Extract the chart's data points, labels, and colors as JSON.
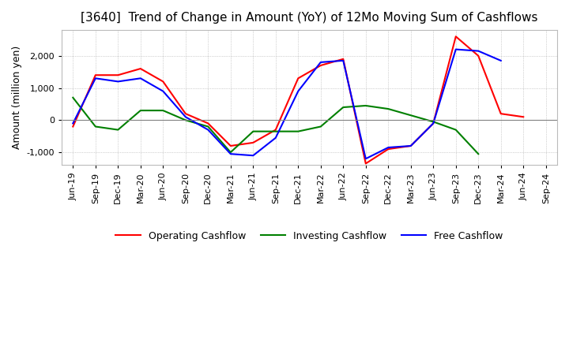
{
  "title": "[3640]  Trend of Change in Amount (YoY) of 12Mo Moving Sum of Cashflows",
  "ylabel": "Amount (million yen)",
  "x_labels": [
    "Jun-19",
    "Sep-19",
    "Dec-19",
    "Mar-20",
    "Jun-20",
    "Sep-20",
    "Dec-20",
    "Mar-21",
    "Jun-21",
    "Sep-21",
    "Dec-21",
    "Mar-22",
    "Jun-22",
    "Sep-22",
    "Dec-22",
    "Mar-23",
    "Jun-23",
    "Sep-23",
    "Dec-23",
    "Mar-24",
    "Jun-24",
    "Sep-24"
  ],
  "operating": [
    -200,
    1400,
    1400,
    1600,
    1200,
    200,
    -100,
    -800,
    -700,
    -300,
    1300,
    1700,
    1900,
    -1350,
    -900,
    -800,
    -100,
    2600,
    2000,
    200,
    100,
    null
  ],
  "investing": [
    700,
    -200,
    -300,
    300,
    300,
    0,
    -200,
    -1000,
    -350,
    -350,
    -350,
    -200,
    400,
    450,
    350,
    150,
    -50,
    -300,
    -1050,
    null,
    null,
    null
  ],
  "free": [
    -100,
    1300,
    1200,
    1300,
    900,
    100,
    -300,
    -1050,
    -1100,
    -550,
    900,
    1800,
    1850,
    -1200,
    -850,
    -800,
    -100,
    2200,
    2150,
    1850,
    null,
    null
  ],
  "ylim": [
    -1400,
    2800
  ],
  "yticks": [
    -1000,
    0,
    1000,
    2000
  ],
  "operating_color": "#ff0000",
  "investing_color": "#008000",
  "free_color": "#0000ff",
  "background_color": "#ffffff",
  "grid_color": "#aaaaaa",
  "title_fontsize": 11,
  "label_fontsize": 9,
  "tick_fontsize": 8
}
